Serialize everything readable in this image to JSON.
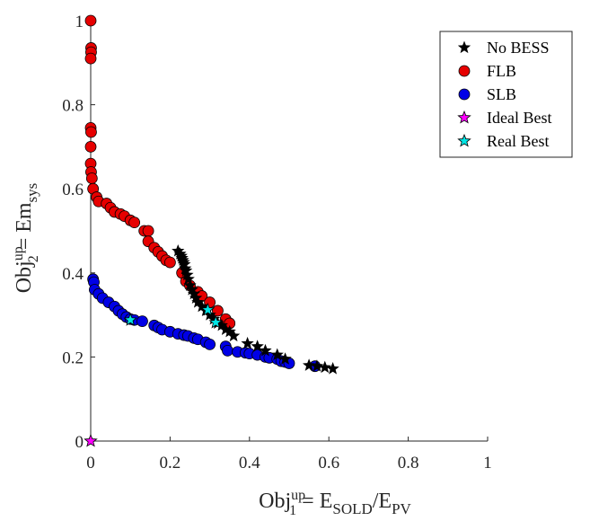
{
  "chart_data": {
    "type": "scatter",
    "xlim": [
      0,
      1
    ],
    "ylim": [
      0,
      1
    ],
    "xticks": [
      "0",
      "0.2",
      "0.4",
      "0.6",
      "0.8",
      "1"
    ],
    "yticks": [
      "0",
      "0.2",
      "0.4",
      "0.6",
      "0.8",
      "1"
    ],
    "xlabel": {
      "base": "Obj",
      "sup": "up",
      "sub": "1",
      "rest": " = E",
      "sub2": "SOLD",
      "rest2": "/E",
      "sub3": "PV"
    },
    "ylabel": {
      "base": "Obj",
      "sup": "up",
      "sub": "2",
      "rest": " = Em",
      "sub2": "sys"
    },
    "legend_position": "top-right",
    "grid": false,
    "series": [
      {
        "name": "No BESS",
        "marker": "star",
        "color": "#000000",
        "points": [
          [
            0.22,
            0.452
          ],
          [
            0.225,
            0.445
          ],
          [
            0.228,
            0.44
          ],
          [
            0.23,
            0.435
          ],
          [
            0.232,
            0.43
          ],
          [
            0.234,
            0.425
          ],
          [
            0.236,
            0.42
          ],
          [
            0.238,
            0.41
          ],
          [
            0.24,
            0.405
          ],
          [
            0.243,
            0.395
          ],
          [
            0.246,
            0.385
          ],
          [
            0.25,
            0.37
          ],
          [
            0.255,
            0.36
          ],
          [
            0.26,
            0.35
          ],
          [
            0.265,
            0.34
          ],
          [
            0.27,
            0.33
          ],
          [
            0.28,
            0.32
          ],
          [
            0.29,
            0.31
          ],
          [
            0.3,
            0.3
          ],
          [
            0.31,
            0.29
          ],
          [
            0.32,
            0.28
          ],
          [
            0.33,
            0.275
          ],
          [
            0.34,
            0.265
          ],
          [
            0.35,
            0.26
          ],
          [
            0.36,
            0.25
          ],
          [
            0.395,
            0.232
          ],
          [
            0.42,
            0.225
          ],
          [
            0.44,
            0.215
          ],
          [
            0.47,
            0.205
          ],
          [
            0.49,
            0.195
          ],
          [
            0.55,
            0.18
          ],
          [
            0.57,
            0.178
          ],
          [
            0.59,
            0.175
          ],
          [
            0.61,
            0.172
          ]
        ]
      },
      {
        "name": "FLB",
        "marker": "circle",
        "color": "#e60000",
        "points": [
          [
            0.0,
            1.0
          ],
          [
            0.001,
            0.935
          ],
          [
            0.001,
            0.925
          ],
          [
            0.0,
            0.91
          ],
          [
            0.0,
            0.745
          ],
          [
            0.001,
            0.735
          ],
          [
            0.0,
            0.7
          ],
          [
            0.0,
            0.66
          ],
          [
            0.001,
            0.64
          ],
          [
            0.003,
            0.625
          ],
          [
            0.006,
            0.6
          ],
          [
            0.015,
            0.58
          ],
          [
            0.02,
            0.57
          ],
          [
            0.04,
            0.565
          ],
          [
            0.05,
            0.555
          ],
          [
            0.06,
            0.545
          ],
          [
            0.075,
            0.54
          ],
          [
            0.085,
            0.535
          ],
          [
            0.1,
            0.525
          ],
          [
            0.11,
            0.52
          ],
          [
            0.135,
            0.5
          ],
          [
            0.145,
            0.5
          ],
          [
            0.145,
            0.475
          ],
          [
            0.16,
            0.46
          ],
          [
            0.17,
            0.45
          ],
          [
            0.18,
            0.44
          ],
          [
            0.19,
            0.43
          ],
          [
            0.2,
            0.425
          ],
          [
            0.23,
            0.4
          ],
          [
            0.24,
            0.38
          ],
          [
            0.25,
            0.37
          ],
          [
            0.27,
            0.355
          ],
          [
            0.28,
            0.345
          ],
          [
            0.3,
            0.33
          ],
          [
            0.32,
            0.31
          ],
          [
            0.34,
            0.29
          ],
          [
            0.35,
            0.28
          ]
        ]
      },
      {
        "name": "SLB",
        "marker": "circle",
        "color": "#0000e6",
        "points": [
          [
            0.006,
            0.385
          ],
          [
            0.008,
            0.378
          ],
          [
            0.01,
            0.36
          ],
          [
            0.02,
            0.35
          ],
          [
            0.03,
            0.34
          ],
          [
            0.045,
            0.33
          ],
          [
            0.06,
            0.32
          ],
          [
            0.07,
            0.31
          ],
          [
            0.08,
            0.302
          ],
          [
            0.09,
            0.295
          ],
          [
            0.1,
            0.29
          ],
          [
            0.11,
            0.288
          ],
          [
            0.13,
            0.285
          ],
          [
            0.16,
            0.275
          ],
          [
            0.17,
            0.27
          ],
          [
            0.18,
            0.265
          ],
          [
            0.2,
            0.26
          ],
          [
            0.22,
            0.255
          ],
          [
            0.235,
            0.252
          ],
          [
            0.245,
            0.25
          ],
          [
            0.26,
            0.245
          ],
          [
            0.27,
            0.242
          ],
          [
            0.29,
            0.235
          ],
          [
            0.3,
            0.23
          ],
          [
            0.34,
            0.225
          ],
          [
            0.345,
            0.215
          ],
          [
            0.37,
            0.212
          ],
          [
            0.39,
            0.21
          ],
          [
            0.4,
            0.208
          ],
          [
            0.42,
            0.205
          ],
          [
            0.44,
            0.2
          ],
          [
            0.45,
            0.198
          ],
          [
            0.47,
            0.195
          ],
          [
            0.48,
            0.19
          ],
          [
            0.49,
            0.188
          ],
          [
            0.5,
            0.185
          ],
          [
            0.565,
            0.178
          ]
        ]
      },
      {
        "name": "Ideal Best",
        "marker": "star",
        "color": "#ff00ff",
        "points": [
          [
            0.0,
            0.0
          ]
        ]
      },
      {
        "name": "Real Best",
        "marker": "star",
        "color": "#00e5e5",
        "points": [
          [
            0.1,
            0.288
          ],
          [
            0.295,
            0.312
          ],
          [
            0.315,
            0.282
          ]
        ]
      }
    ]
  }
}
